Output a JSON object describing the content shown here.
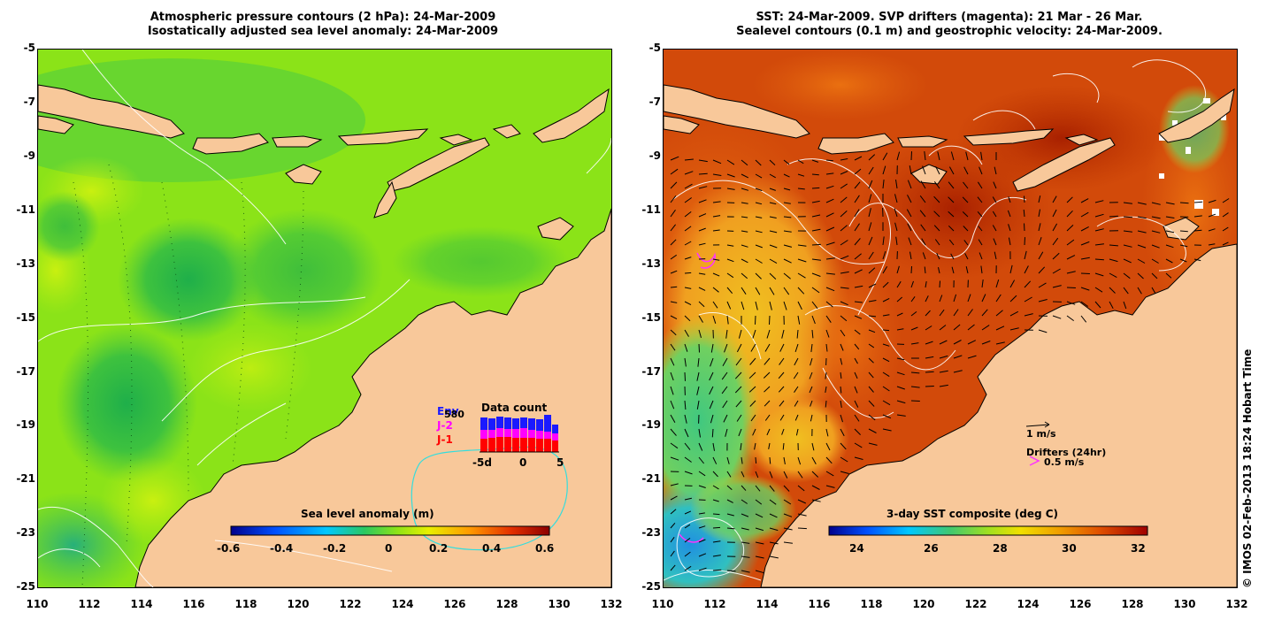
{
  "left_panel": {
    "title_line1": "Atmospheric pressure contours (2 hPa): 24-Mar-2009",
    "title_line2": "Isostatically adjusted sea level anomaly: 24-Mar-2009",
    "colorbar_label": "Sea level anomaly (m)",
    "colorbar_ticks": [
      "-0.6",
      "-0.4",
      "-0.2",
      "0",
      "0.2",
      "0.4",
      "0.6"
    ],
    "inset": {
      "title": "Data count",
      "legend": [
        {
          "label": "Env",
          "color": "#1a1aff"
        },
        {
          "label": "J-2",
          "color": "#ff00ff"
        },
        {
          "label": "J-1",
          "color": "#ff0000"
        }
      ],
      "overlap_label": "580",
      "xticks": [
        "-5d",
        "0",
        "5"
      ]
    }
  },
  "right_panel": {
    "title_line1": "SST: 24-Mar-2009. SVP drifters (magenta): 21 Mar - 26 Mar.",
    "title_line2": "Sealevel contours (0.1 m) and geostrophic velocity: 24-Mar-2009.",
    "colorbar_label": "3-day SST composite (deg C)",
    "colorbar_ticks": [
      "24",
      "26",
      "28",
      "30",
      "32"
    ],
    "velocity_legend": "1 m/s",
    "drifter_legend_title": "Drifters (24hr)",
    "drifter_legend": "0.5 m/s"
  },
  "axes": {
    "y_ticks": [
      "-5",
      "-7",
      "-9",
      "-11",
      "-13",
      "-15",
      "-17",
      "-19",
      "-21",
      "-23",
      "-25"
    ],
    "x_ticks": [
      "110",
      "112",
      "114",
      "116",
      "118",
      "120",
      "122",
      "124",
      "126",
      "128",
      "130",
      "132"
    ]
  },
  "credit": "© IMOS 02-Feb-2013 18:24 Hobart Time",
  "colors": {
    "land": "#f8c89a",
    "sla_background": "#8be318",
    "sst_background": "#d24a0a"
  }
}
